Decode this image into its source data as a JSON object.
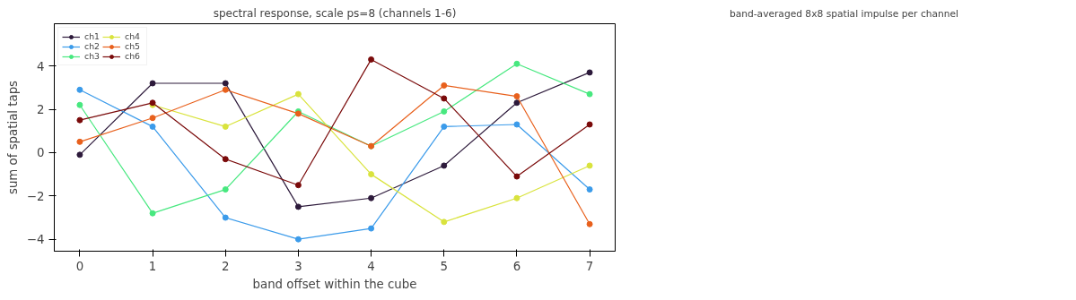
{
  "chart_data": [
    {
      "type": "line",
      "title": "spectral response, scale ps=8 (channels 1-6)",
      "xlabel": "band offset within the cube",
      "ylabel": "sum of spatial taps",
      "x": [
        0,
        1,
        2,
        3,
        4,
        5,
        6,
        7
      ],
      "series": [
        {
          "name": "ch1",
          "color": "#2d1a3b",
          "values": [
            -0.1,
            3.2,
            3.2,
            -2.5,
            -2.1,
            -0.6,
            2.3,
            3.7
          ]
        },
        {
          "name": "ch2",
          "color": "#3b9bea",
          "values": [
            2.9,
            1.2,
            -3.0,
            -4.0,
            -3.5,
            1.2,
            1.3,
            -1.7
          ]
        },
        {
          "name": "ch3",
          "color": "#47e87f",
          "values": [
            2.2,
            -2.8,
            -1.7,
            1.9,
            0.3,
            1.9,
            4.1,
            2.7
          ]
        },
        {
          "name": "ch4",
          "color": "#d9e33d",
          "values": [
            null,
            2.2,
            1.2,
            2.7,
            -1.0,
            -3.2,
            -2.1,
            -0.6
          ]
        },
        {
          "name": "ch5",
          "color": "#e8601c",
          "values": [
            0.5,
            1.6,
            2.9,
            1.8,
            0.3,
            3.1,
            2.6,
            -3.3
          ]
        },
        {
          "name": "ch6",
          "color": "#7a0a0a",
          "values": [
            1.5,
            2.3,
            -0.3,
            -1.5,
            4.3,
            2.5,
            -1.1,
            1.3
          ]
        }
      ],
      "xlim": [
        -0.35,
        7.35
      ],
      "ylim": [
        -4.55,
        5.95
      ],
      "xticks": [
        0,
        1,
        2,
        3,
        4,
        5,
        6,
        7
      ],
      "yticks": [
        -4,
        -2,
        0,
        2,
        4
      ],
      "grid": false,
      "legend": "top left",
      "marker": "circle",
      "line_style": "solid"
    },
    {
      "type": "other",
      "title": "band-averaged 8x8 spatial impulse per channel"
    }
  ]
}
